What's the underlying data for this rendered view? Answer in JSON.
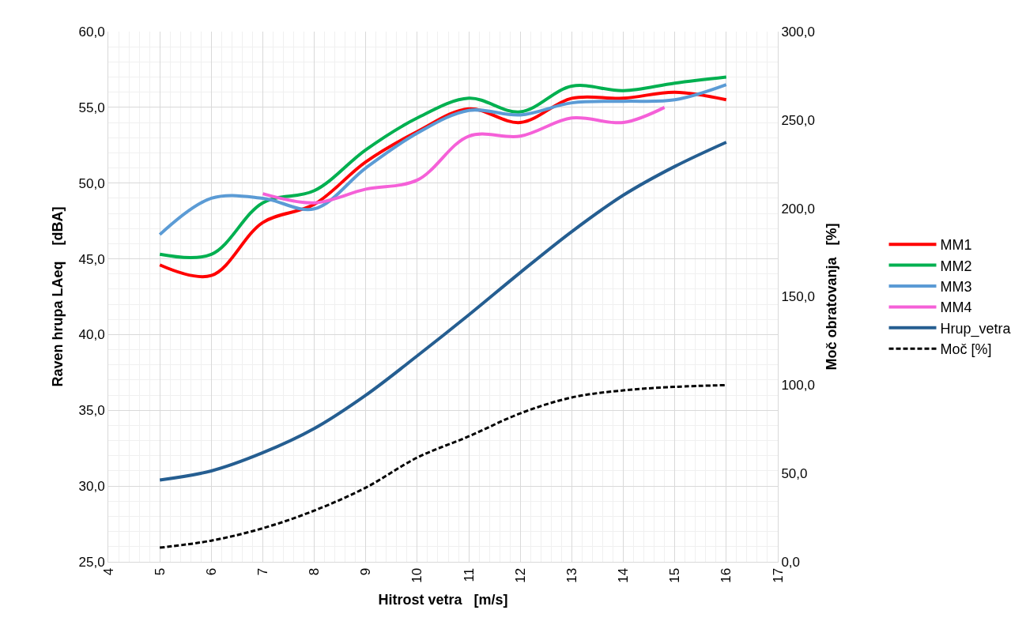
{
  "chart_data": {
    "type": "line",
    "xlabel": "Hitrost vetra   [m/s]",
    "ylabel": "Raven hrupa LAeq    [dBA]",
    "y2label": "Moč obratovanja   [%]",
    "x": [
      5,
      6,
      7,
      8,
      9,
      10,
      11,
      12,
      13,
      14,
      15,
      16
    ],
    "series": [
      {
        "name": "MM1",
        "color": "#ff0000",
        "values": [
          44.6,
          43.9,
          47.4,
          48.6,
          51.4,
          53.4,
          54.9,
          54.0,
          55.6,
          55.6,
          56.0,
          55.5
        ]
      },
      {
        "name": "MM2",
        "color": "#00b050",
        "values": [
          45.3,
          45.3,
          48.7,
          49.5,
          52.2,
          54.3,
          55.6,
          54.7,
          56.4,
          56.1,
          56.6,
          57.0
        ]
      },
      {
        "name": "MM3",
        "color": "#5b9bd5",
        "values": [
          46.6,
          49.0,
          49.0,
          48.3,
          51.0,
          53.3,
          54.8,
          54.5,
          55.3,
          55.4,
          55.5,
          56.5
        ]
      },
      {
        "name": "MM4",
        "color": "#f560d8",
        "x": [
          7,
          8,
          9,
          10,
          11,
          12,
          13,
          14,
          14.8
        ],
        "values": [
          49.3,
          48.7,
          49.6,
          50.2,
          53.1,
          53.1,
          54.3,
          54.0,
          55.0
        ]
      },
      {
        "name": "Hrup_vetra",
        "color": "#255e91",
        "values": [
          30.4,
          31.0,
          32.2,
          33.8,
          36.0,
          38.6,
          41.3,
          44.1,
          46.8,
          49.2,
          51.1,
          52.7
        ]
      },
      {
        "name": "Moč [%]",
        "color": "#000000",
        "axis": "y2",
        "line_style": "dashed",
        "values": [
          8,
          12,
          19,
          29,
          42,
          59,
          71,
          84,
          93,
          97,
          99,
          100
        ]
      }
    ],
    "xlim": [
      4,
      17
    ],
    "xticks": [
      4,
      5,
      6,
      7,
      8,
      9,
      10,
      11,
      12,
      13,
      14,
      15,
      16,
      17
    ],
    "ylim": [
      25,
      60
    ],
    "yticks": [
      {
        "value": 25,
        "label": "25,0"
      },
      {
        "value": 30,
        "label": "30,0"
      },
      {
        "value": 35,
        "label": "35,0"
      },
      {
        "value": 40,
        "label": "40,0"
      },
      {
        "value": 45,
        "label": "45,0"
      },
      {
        "value": 50,
        "label": "50,0"
      },
      {
        "value": 55,
        "label": "55,0"
      },
      {
        "value": 60,
        "label": "60,0"
      }
    ],
    "y2lim": [
      0,
      300
    ],
    "y2ticks": [
      {
        "value": 0,
        "label": "0,0"
      },
      {
        "value": 50,
        "label": "50,0"
      },
      {
        "value": 100,
        "label": "100,0"
      },
      {
        "value": 150,
        "label": "150,0"
      },
      {
        "value": 200,
        "label": "200,0"
      },
      {
        "value": 250,
        "label": "250,0"
      },
      {
        "value": 300,
        "label": "300,0"
      }
    ],
    "grid": true,
    "legend": "right",
    "line_style": "solid",
    "marker": "none"
  }
}
